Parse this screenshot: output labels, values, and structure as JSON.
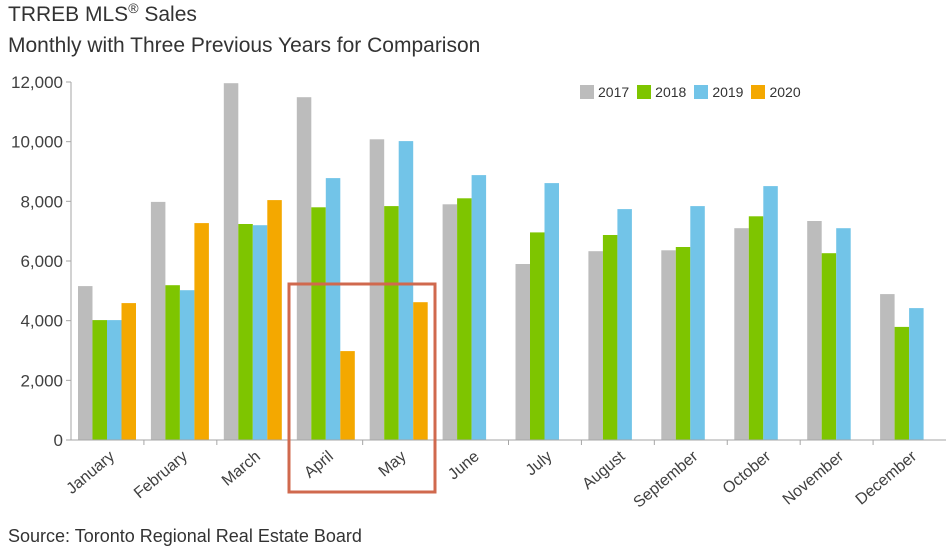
{
  "title": {
    "main": "TRREB MLS",
    "reg_mark": "®",
    "suffix": " Sales"
  },
  "subtitle": "Monthly with Three Previous Years for Comparison",
  "source": "Source: Toronto Regional Real Estate Board",
  "highlight": {
    "categories": [
      "April",
      "May"
    ],
    "color": "#d0694e"
  },
  "chart_data": {
    "type": "bar",
    "title": "TRREB MLS® Sales",
    "subtitle": "Monthly with Three Previous Years for Comparison",
    "xlabel": "",
    "ylabel": "",
    "ylim": [
      0,
      12000
    ],
    "yticks": [
      0,
      2000,
      4000,
      6000,
      8000,
      10000,
      12000
    ],
    "ytick_labels": [
      "0",
      "2,000",
      "4,000",
      "6,000",
      "8,000",
      "10,000",
      "12,000"
    ],
    "grid": false,
    "legend_position": "top-right",
    "categories": [
      "January",
      "February",
      "March",
      "April",
      "May",
      "June",
      "July",
      "August",
      "September",
      "October",
      "November",
      "December"
    ],
    "series": [
      {
        "name": "2017",
        "color": "#bcbcbc",
        "values": [
          5160,
          7980,
          11960,
          11490,
          10080,
          7900,
          5900,
          6330,
          6360,
          7100,
          7340,
          4890
        ]
      },
      {
        "name": "2018",
        "color": "#7ec500",
        "values": [
          4020,
          5190,
          7240,
          7800,
          7840,
          8100,
          6960,
          6870,
          6470,
          7500,
          6260,
          3790
        ]
      },
      {
        "name": "2019",
        "color": "#72c4e8",
        "values": [
          4020,
          5020,
          7200,
          8780,
          10020,
          8880,
          8610,
          7740,
          7840,
          8510,
          7100,
          4420
        ]
      },
      {
        "name": "2020",
        "color": "#f4a800",
        "values": [
          4590,
          7270,
          8040,
          2980,
          4620,
          null,
          null,
          null,
          null,
          null,
          null,
          null
        ]
      }
    ]
  }
}
